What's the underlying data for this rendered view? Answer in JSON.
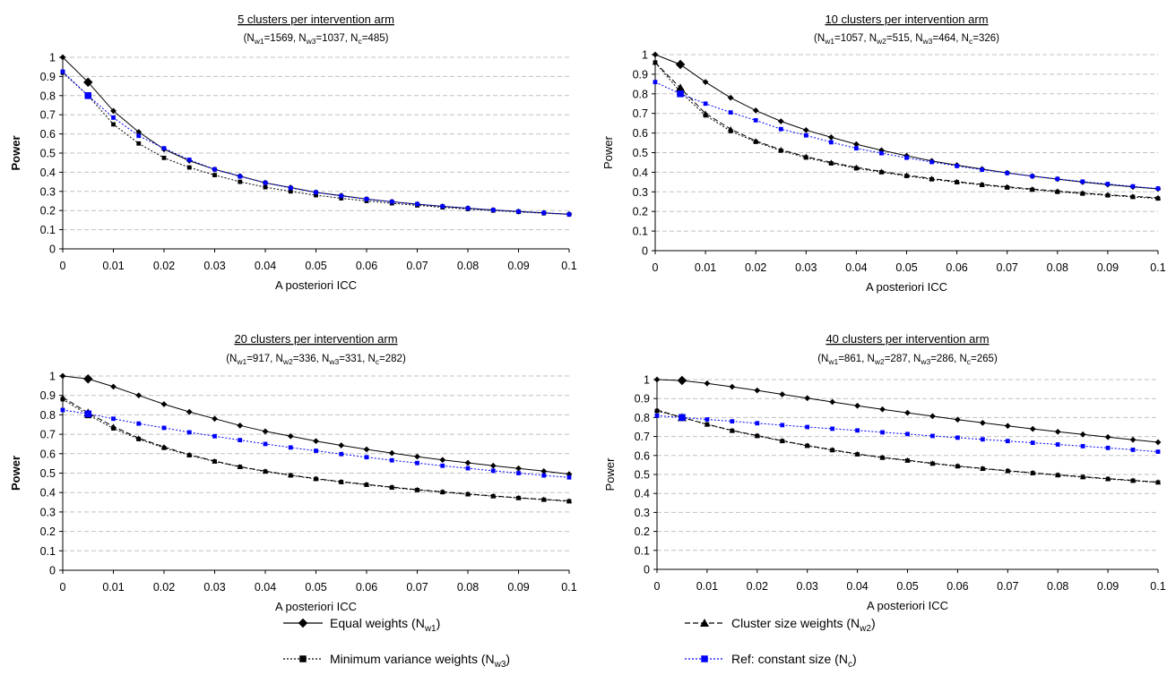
{
  "legend": {
    "equal": {
      "label": "Equal weights",
      "sym": "N",
      "sub": "w1"
    },
    "cluster": {
      "label": "Cluster size weights",
      "sym": "N",
      "sub": "w2"
    },
    "minvar": {
      "label": "Minimum variance weights",
      "sym": "N",
      "sub": "w3"
    },
    "ref": {
      "label": "Ref: constant size",
      "sym": "N",
      "sub": "c"
    }
  },
  "colors": {
    "equal": "#000000",
    "cluster": "#000000",
    "minvar": "#000000",
    "ref": "#0000ff",
    "grid": "#c0c0c0"
  },
  "chart_data": [
    {
      "type": "line",
      "title": "5 clusters per intervention arm",
      "subtitle_parts": [
        {
          "t": "(N"
        },
        {
          "s": "w1"
        },
        {
          "t": "=1569, N"
        },
        {
          "s": "w3"
        },
        {
          "t": "=1037, N"
        },
        {
          "s": "c"
        },
        {
          "t": "=485)"
        }
      ],
      "xlabel": "A posteriori ICC",
      "ylabel": "Power",
      "ylabel_bold": true,
      "xlim": [
        0,
        0.1
      ],
      "ylim": [
        0,
        1
      ],
      "xticks": [
        "0",
        "0.01",
        "0.02",
        "0.03",
        "0.04",
        "0.05",
        "0.06",
        "0.07",
        "0.08",
        "0.09",
        "0.1"
      ],
      "yticks": [
        "0",
        "0.1",
        "0.2",
        "0.3",
        "0.4",
        "0.5",
        "0.6",
        "0.7",
        "0.8",
        "0.9",
        "1"
      ],
      "grid": true,
      "x": [
        0,
        0.005,
        0.01,
        0.015,
        0.02,
        0.025,
        0.03,
        0.035,
        0.04,
        0.045,
        0.05,
        0.055,
        0.06,
        0.065,
        0.07,
        0.075,
        0.08,
        0.085,
        0.09,
        0.095,
        0.1
      ],
      "series": [
        {
          "name": "Equal weights",
          "key": "equal",
          "values": [
            1.0,
            0.87,
            0.72,
            0.61,
            0.52,
            0.46,
            0.415,
            0.38,
            0.345,
            0.32,
            0.295,
            0.278,
            0.26,
            0.246,
            0.233,
            0.222,
            0.212,
            0.203,
            0.195,
            0.188,
            0.181
          ]
        },
        {
          "name": "Minimum variance weights",
          "key": "minvar",
          "values": [
            0.92,
            0.8,
            0.65,
            0.55,
            0.475,
            0.425,
            0.385,
            0.35,
            0.322,
            0.3,
            0.28,
            0.264,
            0.25,
            0.238,
            0.227,
            0.217,
            0.208,
            0.2,
            0.193,
            0.186,
            0.18
          ]
        },
        {
          "name": "Ref: constant size",
          "key": "ref",
          "values": [
            0.925,
            0.8,
            0.685,
            0.59,
            0.525,
            0.465,
            0.415,
            0.378,
            0.345,
            0.318,
            0.295,
            0.276,
            0.26,
            0.246,
            0.234,
            0.222,
            0.212,
            0.203,
            0.195,
            0.188,
            0.18
          ]
        }
      ]
    },
    {
      "type": "line",
      "title": "10 clusters per intervention arm",
      "subtitle_parts": [
        {
          "t": "(N"
        },
        {
          "s": "w1"
        },
        {
          "t": "=1057, N"
        },
        {
          "s": "w2"
        },
        {
          "t": "=515, N"
        },
        {
          "s": "w3"
        },
        {
          "t": "=464, N"
        },
        {
          "s": "c"
        },
        {
          "t": "=326)"
        }
      ],
      "xlabel": "A posteriori ICC",
      "ylabel": "Power",
      "ylabel_bold": false,
      "xlim": [
        0,
        0.1
      ],
      "ylim": [
        0,
        1
      ],
      "xticks": [
        "0",
        "0.01",
        "0.02",
        "0.03",
        "0.04",
        "0.05",
        "0.06",
        "0.07",
        "0.08",
        "0.09",
        "0.1"
      ],
      "yticks": [
        "0",
        "0.1",
        "0.2",
        "0.3",
        "0.4",
        "0.5",
        "0.6",
        "0.7",
        "0.8",
        "0.9",
        "1"
      ],
      "grid": true,
      "x": [
        0,
        0.005,
        0.01,
        0.015,
        0.02,
        0.025,
        0.03,
        0.035,
        0.04,
        0.045,
        0.05,
        0.055,
        0.06,
        0.065,
        0.07,
        0.075,
        0.08,
        0.085,
        0.09,
        0.095,
        0.1
      ],
      "series": [
        {
          "name": "Equal weights",
          "key": "equal",
          "values": [
            1.0,
            0.95,
            0.86,
            0.78,
            0.715,
            0.66,
            0.615,
            0.578,
            0.543,
            0.512,
            0.484,
            0.458,
            0.436,
            0.416,
            0.397,
            0.38,
            0.365,
            0.35,
            0.337,
            0.325,
            0.315
          ]
        },
        {
          "name": "Cluster size weights",
          "key": "cluster",
          "values": [
            0.96,
            0.83,
            0.7,
            0.62,
            0.56,
            0.515,
            0.48,
            0.45,
            0.425,
            0.404,
            0.385,
            0.368,
            0.352,
            0.338,
            0.326,
            0.314,
            0.304,
            0.294,
            0.285,
            0.277,
            0.27
          ]
        },
        {
          "name": "Minimum variance weights",
          "key": "minvar",
          "values": [
            0.96,
            0.81,
            0.69,
            0.61,
            0.555,
            0.51,
            0.475,
            0.445,
            0.42,
            0.4,
            0.381,
            0.364,
            0.349,
            0.335,
            0.322,
            0.311,
            0.3,
            0.291,
            0.282,
            0.274,
            0.266
          ]
        },
        {
          "name": "Ref: constant size",
          "key": "ref",
          "values": [
            0.86,
            0.8,
            0.75,
            0.705,
            0.665,
            0.62,
            0.588,
            0.553,
            0.522,
            0.497,
            0.474,
            0.452,
            0.432,
            0.413,
            0.396,
            0.38,
            0.366,
            0.352,
            0.34,
            0.328,
            0.317
          ]
        }
      ]
    },
    {
      "type": "line",
      "title": "20 clusters per intervention arm",
      "subtitle_parts": [
        {
          "t": "(N"
        },
        {
          "s": "w1"
        },
        {
          "t": "=917, N"
        },
        {
          "s": "w2"
        },
        {
          "t": "=336, N"
        },
        {
          "s": "w3"
        },
        {
          "t": "=331, N"
        },
        {
          "s": "c"
        },
        {
          "t": "=282)"
        }
      ],
      "xlabel": "A posteriori ICC",
      "ylabel": "Power",
      "ylabel_bold": true,
      "xlim": [
        0,
        0.1
      ],
      "ylim": [
        0,
        1
      ],
      "xticks": [
        "0",
        "0.01",
        "0.02",
        "0.03",
        "0.04",
        "0.05",
        "0.06",
        "0.07",
        "0.08",
        "0.09",
        "0.1"
      ],
      "yticks": [
        "0",
        "0.1",
        "0.2",
        "0.3",
        "0.4",
        "0.5",
        "0.6",
        "0.7",
        "0.8",
        "0.9",
        "1"
      ],
      "grid": true,
      "x": [
        0,
        0.005,
        0.01,
        0.015,
        0.02,
        0.025,
        0.03,
        0.035,
        0.04,
        0.045,
        0.05,
        0.055,
        0.06,
        0.065,
        0.07,
        0.075,
        0.08,
        0.085,
        0.09,
        0.095,
        0.1
      ],
      "series": [
        {
          "name": "Equal weights",
          "key": "equal",
          "values": [
            1.0,
            0.985,
            0.945,
            0.9,
            0.855,
            0.815,
            0.78,
            0.745,
            0.715,
            0.69,
            0.665,
            0.643,
            0.622,
            0.603,
            0.585,
            0.568,
            0.553,
            0.538,
            0.524,
            0.51,
            0.495
          ]
        },
        {
          "name": "Cluster size weights",
          "key": "cluster",
          "values": [
            0.89,
            0.81,
            0.74,
            0.68,
            0.635,
            0.595,
            0.562,
            0.533,
            0.51,
            0.49,
            0.472,
            0.456,
            0.442,
            0.428,
            0.415,
            0.404,
            0.393,
            0.383,
            0.373,
            0.365,
            0.357
          ]
        },
        {
          "name": "Minimum variance weights",
          "key": "minvar",
          "values": [
            0.88,
            0.8,
            0.73,
            0.675,
            0.63,
            0.592,
            0.56,
            0.532,
            0.508,
            0.488,
            0.47,
            0.454,
            0.44,
            0.426,
            0.413,
            0.402,
            0.391,
            0.381,
            0.372,
            0.363,
            0.355
          ]
        },
        {
          "name": "Ref: constant size",
          "key": "ref",
          "values": [
            0.825,
            0.805,
            0.78,
            0.755,
            0.733,
            0.71,
            0.69,
            0.67,
            0.65,
            0.632,
            0.615,
            0.598,
            0.582,
            0.566,
            0.552,
            0.538,
            0.525,
            0.512,
            0.5,
            0.488,
            0.478
          ]
        }
      ]
    },
    {
      "type": "line",
      "title": "40 clusters per intervention arm",
      "subtitle_parts": [
        {
          "t": "(N"
        },
        {
          "s": "w1"
        },
        {
          "t": "=861, N"
        },
        {
          "s": "w2"
        },
        {
          "t": "=287, N"
        },
        {
          "s": "w3"
        },
        {
          "t": "=286, N"
        },
        {
          "s": "c"
        },
        {
          "t": "=265)"
        }
      ],
      "xlabel": "A posteriori ICC",
      "ylabel": "Power",
      "ylabel_bold": false,
      "xlim": [
        0,
        0.1
      ],
      "ylim": [
        0,
        1
      ],
      "xticks": [
        "0",
        "0.01",
        "0.02",
        "0.03",
        "0.04",
        "0.05",
        "0.06",
        "0.07",
        "0.08",
        "0.09",
        "0.1"
      ],
      "yticks": [
        "0",
        "0.1",
        "0.2",
        "0.3",
        "0.4",
        "0.5",
        "0.6",
        "0.7",
        "0.8",
        "0.9",
        "1"
      ],
      "grid": true,
      "x": [
        0,
        0.005,
        0.01,
        0.015,
        0.02,
        0.025,
        0.03,
        0.035,
        0.04,
        0.045,
        0.05,
        0.055,
        0.06,
        0.065,
        0.07,
        0.075,
        0.08,
        0.085,
        0.09,
        0.095,
        0.1
      ],
      "series": [
        {
          "name": "Equal weights",
          "key": "equal",
          "values": [
            1.0,
            0.995,
            0.98,
            0.962,
            0.943,
            0.922,
            0.902,
            0.882,
            0.862,
            0.843,
            0.825,
            0.807,
            0.789,
            0.772,
            0.756,
            0.74,
            0.725,
            0.711,
            0.697,
            0.683,
            0.67
          ]
        },
        {
          "name": "Cluster size weights",
          "key": "cluster",
          "values": [
            0.84,
            0.8,
            0.765,
            0.732,
            0.705,
            0.678,
            0.653,
            0.63,
            0.608,
            0.59,
            0.575,
            0.559,
            0.545,
            0.532,
            0.52,
            0.509,
            0.498,
            0.488,
            0.478,
            0.469,
            0.46
          ]
        },
        {
          "name": "Minimum variance weights",
          "key": "minvar",
          "values": [
            0.835,
            0.8,
            0.763,
            0.73,
            0.703,
            0.676,
            0.651,
            0.628,
            0.606,
            0.588,
            0.573,
            0.557,
            0.543,
            0.53,
            0.518,
            0.507,
            0.496,
            0.486,
            0.476,
            0.467,
            0.458
          ]
        },
        {
          "name": "Ref: constant size",
          "key": "ref",
          "values": [
            0.81,
            0.8,
            0.79,
            0.78,
            0.77,
            0.76,
            0.75,
            0.741,
            0.732,
            0.722,
            0.713,
            0.703,
            0.694,
            0.685,
            0.676,
            0.667,
            0.658,
            0.649,
            0.64,
            0.63,
            0.62
          ]
        }
      ]
    }
  ]
}
